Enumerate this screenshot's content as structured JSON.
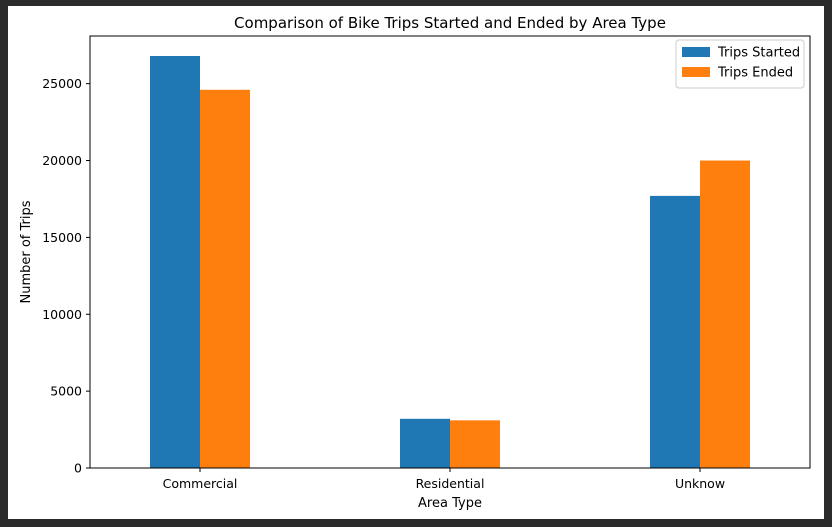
{
  "chart_data": {
    "type": "bar",
    "title": "Comparison of Bike Trips Started and Ended by Area Type",
    "xlabel": "Area Type",
    "ylabel": "Number of Trips",
    "categories": [
      "Commercial",
      "Residential",
      "Unknow"
    ],
    "series": [
      {
        "name": "Trips Started",
        "color": "#1f77b4",
        "values": [
          26800,
          3200,
          17700
        ]
      },
      {
        "name": "Trips Ended",
        "color": "#ff7f0e",
        "values": [
          24600,
          3100,
          20000
        ]
      }
    ],
    "ylim": [
      0,
      28100
    ],
    "yticks": [
      0,
      5000,
      10000,
      15000,
      20000,
      25000
    ],
    "ytick_labels": [
      "0",
      "5000",
      "10000",
      "15000",
      "20000",
      "25000"
    ],
    "grid": false,
    "legend_position": "top-right"
  }
}
